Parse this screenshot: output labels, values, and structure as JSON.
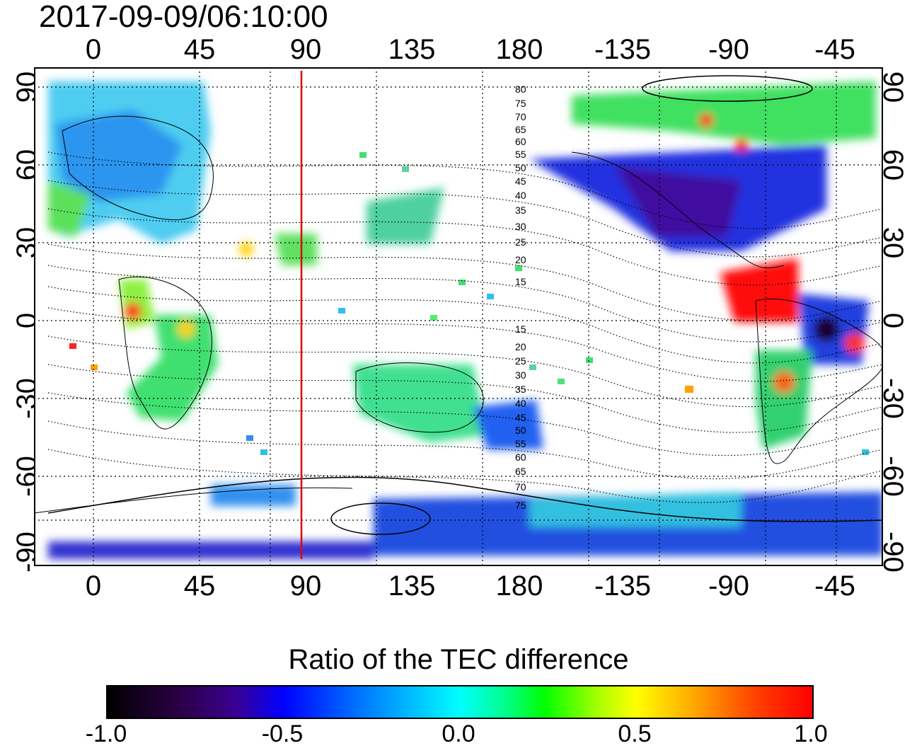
{
  "title": "2017-09-09/06:10:00",
  "map": {
    "top_ticks": [
      "0",
      "45",
      "90",
      "135",
      "180",
      "-135",
      "-90",
      "-45"
    ],
    "bottom_ticks": [
      "0",
      "45",
      "90",
      "135",
      "180",
      "-135",
      "-90",
      "-45"
    ],
    "left_ticks": [
      "90",
      "60",
      "30",
      "0",
      "-30",
      "-60",
      "-90"
    ],
    "right_ticks": [
      "90",
      "60",
      "30",
      "0",
      "-30",
      "-60",
      "-90"
    ],
    "contour_labels_north": [
      "80",
      "75",
      "70",
      "65",
      "60",
      "55",
      "50",
      "45",
      "40",
      "35",
      "30",
      "25",
      "20",
      "15"
    ],
    "contour_labels_south": [
      "15",
      "20",
      "25",
      "30",
      "35",
      "40",
      "45",
      "50",
      "55",
      "60",
      "65",
      "70",
      "75"
    ],
    "marker_longitude": 88,
    "marker_color": "#e00000"
  },
  "colorbar": {
    "title": "Ratio of the TEC difference",
    "ticks": [
      "-1.0",
      "-0.5",
      "0.0",
      "0.5",
      "1.0"
    ],
    "colors": [
      "#000000",
      "#3a0090",
      "#0000ff",
      "#00ffff",
      "#00ff00",
      "#ffff00",
      "#ff0000"
    ]
  }
}
